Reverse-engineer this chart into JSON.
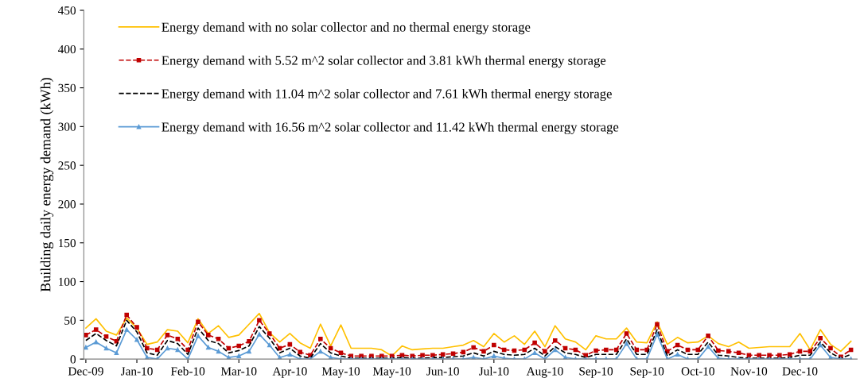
{
  "chart_data": {
    "type": "line",
    "ylabel": "Building daily energy demand (kWh)",
    "categories": [
      "Dec-09",
      null,
      null,
      null,
      null,
      "Jan-10",
      null,
      null,
      null,
      null,
      "Feb-10",
      null,
      null,
      null,
      null,
      "Mar-10",
      null,
      null,
      null,
      null,
      "Apr-10",
      null,
      null,
      null,
      null,
      "May-10",
      null,
      null,
      null,
      null,
      "May-10",
      null,
      null,
      null,
      null,
      "Jun-10",
      null,
      null,
      null,
      null,
      "Jul-10",
      null,
      null,
      null,
      null,
      "Aug-10",
      null,
      null,
      null,
      null,
      "Sep-10",
      null,
      null,
      null,
      null,
      "Sep-10",
      null,
      null,
      null,
      null,
      "Oct-10",
      null,
      null,
      null,
      null,
      "Nov-10",
      null,
      null,
      null,
      null,
      "Dec-10",
      null,
      null,
      null,
      null,
      null
    ],
    "ylim": [
      0,
      450
    ],
    "yticks": [
      0,
      50,
      100,
      150,
      200,
      250,
      300,
      350,
      400,
      450
    ],
    "grid": false,
    "legend": "top left",
    "series": [
      {
        "name": "Energy demand with no solar collector and no thermal energy storage",
        "color": "#ffc000",
        "line_style": "solid",
        "marker": "none",
        "values": [
          40,
          52,
          36,
          31,
          53,
          40,
          19,
          22,
          38,
          36,
          21,
          52,
          33,
          43,
          28,
          31,
          45,
          59,
          34,
          22,
          33,
          21,
          14,
          45,
          17,
          44,
          14,
          14,
          14,
          12,
          4,
          17,
          12,
          13,
          14,
          14,
          16,
          18,
          24,
          16,
          33,
          22,
          30,
          19,
          36,
          16,
          43,
          26,
          22,
          12,
          30,
          26,
          26,
          40,
          22,
          21,
          48,
          19,
          28,
          21,
          22,
          30,
          20,
          16,
          22,
          14,
          15,
          16,
          16,
          16,
          33,
          12,
          38,
          19,
          10,
          23
        ]
      },
      {
        "name": "Energy demand with 5.52 m^2 solar collector and 3.81 kWh thermal energy storage",
        "color": "#c00000",
        "line_style": "dashed",
        "marker": "square",
        "values": [
          31,
          38,
          29,
          23,
          57,
          41,
          14,
          12,
          31,
          26,
          12,
          48,
          31,
          26,
          14,
          17,
          23,
          50,
          33,
          14,
          19,
          9,
          5,
          26,
          14,
          8,
          4,
          4,
          4,
          4,
          4,
          5,
          4,
          5,
          5,
          6,
          7,
          9,
          15,
          10,
          18,
          12,
          11,
          12,
          21,
          10,
          24,
          14,
          12,
          5,
          11,
          12,
          12,
          33,
          12,
          12,
          45,
          10,
          18,
          12,
          12,
          30,
          11,
          10,
          8,
          5,
          5,
          5,
          5,
          6,
          10,
          10,
          27,
          14,
          3,
          12
        ]
      },
      {
        "name": "Energy demand with 11.04 m^2 solar collector and 7.61 kWh thermal energy storage",
        "color": "#000000",
        "line_style": "dashed",
        "marker": "none",
        "values": [
          24,
          33,
          24,
          17,
          50,
          35,
          8,
          5,
          24,
          20,
          6,
          40,
          24,
          20,
          8,
          11,
          17,
          42,
          27,
          8,
          14,
          4,
          1,
          20,
          8,
          4,
          1,
          1,
          1,
          1,
          1,
          2,
          1,
          1,
          2,
          2,
          3,
          4,
          8,
          4,
          10,
          6,
          5,
          6,
          14,
          4,
          16,
          8,
          6,
          2,
          6,
          6,
          6,
          26,
          6,
          6,
          38,
          4,
          12,
          6,
          6,
          22,
          5,
          4,
          2,
          1,
          1,
          1,
          1,
          2,
          5,
          5,
          22,
          8,
          1,
          6
        ]
      },
      {
        "name": "Energy demand with 16.56 m^2 solar collector and 11.42 kWh thermal energy storage",
        "color": "#5b9bd5",
        "line_style": "solid",
        "marker": "triangle",
        "values": [
          15,
          22,
          14,
          8,
          38,
          25,
          2,
          0,
          14,
          12,
          0,
          30,
          15,
          10,
          2,
          4,
          10,
          32,
          18,
          2,
          6,
          0,
          0,
          10,
          2,
          0,
          0,
          0,
          0,
          0,
          0,
          0,
          0,
          0,
          0,
          0,
          0,
          0,
          2,
          0,
          4,
          1,
          0,
          0,
          8,
          0,
          12,
          2,
          0,
          0,
          0,
          0,
          0,
          20,
          0,
          0,
          32,
          0,
          6,
          0,
          0,
          16,
          1,
          0,
          0,
          0,
          0,
          0,
          0,
          0,
          0,
          0,
          18,
          2,
          0,
          0
        ]
      }
    ]
  }
}
